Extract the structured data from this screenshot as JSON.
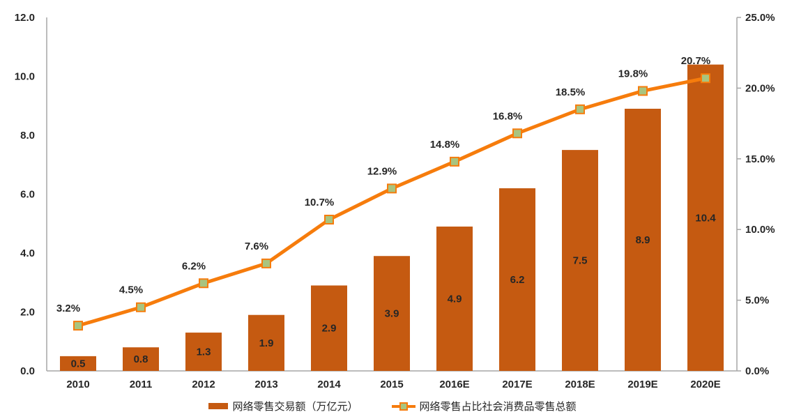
{
  "chart_data": {
    "type": "bar+line combo",
    "categories": [
      "2010",
      "2011",
      "2012",
      "2013",
      "2014",
      "2015",
      "2016E",
      "2017E",
      "2018E",
      "2019E",
      "2020E"
    ],
    "series": [
      {
        "name": "网络零售交易额（万亿元）",
        "type": "bar",
        "axis": "left",
        "values": [
          0.5,
          0.8,
          1.3,
          1.9,
          2.9,
          3.9,
          4.9,
          6.2,
          7.5,
          8.9,
          10.4
        ],
        "labels": [
          "0.5",
          "0.8",
          "1.3",
          "1.9",
          "2.9",
          "3.9",
          "4.9",
          "6.2",
          "7.5",
          "8.9",
          "10.4"
        ],
        "color": "#C55A11"
      },
      {
        "name": "网络零售占比社会消费品零售总额",
        "type": "line",
        "axis": "right",
        "values": [
          3.2,
          4.5,
          6.2,
          7.6,
          10.7,
          12.9,
          14.8,
          16.8,
          18.5,
          19.8,
          20.7
        ],
        "labels": [
          "3.2%",
          "4.5%",
          "6.2%",
          "7.6%",
          "10.7%",
          "12.9%",
          "14.8%",
          "16.8%",
          "18.5%",
          "19.8%",
          "20.7%"
        ],
        "color": "#F67C0C",
        "marker_fill": "#A9C47F"
      }
    ],
    "left_axis": {
      "min": 0,
      "max": 12,
      "step": 2,
      "ticks": [
        "0.0",
        "2.0",
        "4.0",
        "6.0",
        "8.0",
        "10.0",
        "12.0"
      ]
    },
    "right_axis": {
      "min": 0,
      "max": 25,
      "step": 5,
      "ticks": [
        "0.0%",
        "5.0%",
        "10.0%",
        "15.0%",
        "20.0%",
        "25.0%"
      ]
    },
    "grid": false,
    "legend_position": "bottom",
    "style": {
      "axis_color": "#A6A6A6",
      "text_color": "#262626",
      "background": "#ffffff"
    }
  }
}
